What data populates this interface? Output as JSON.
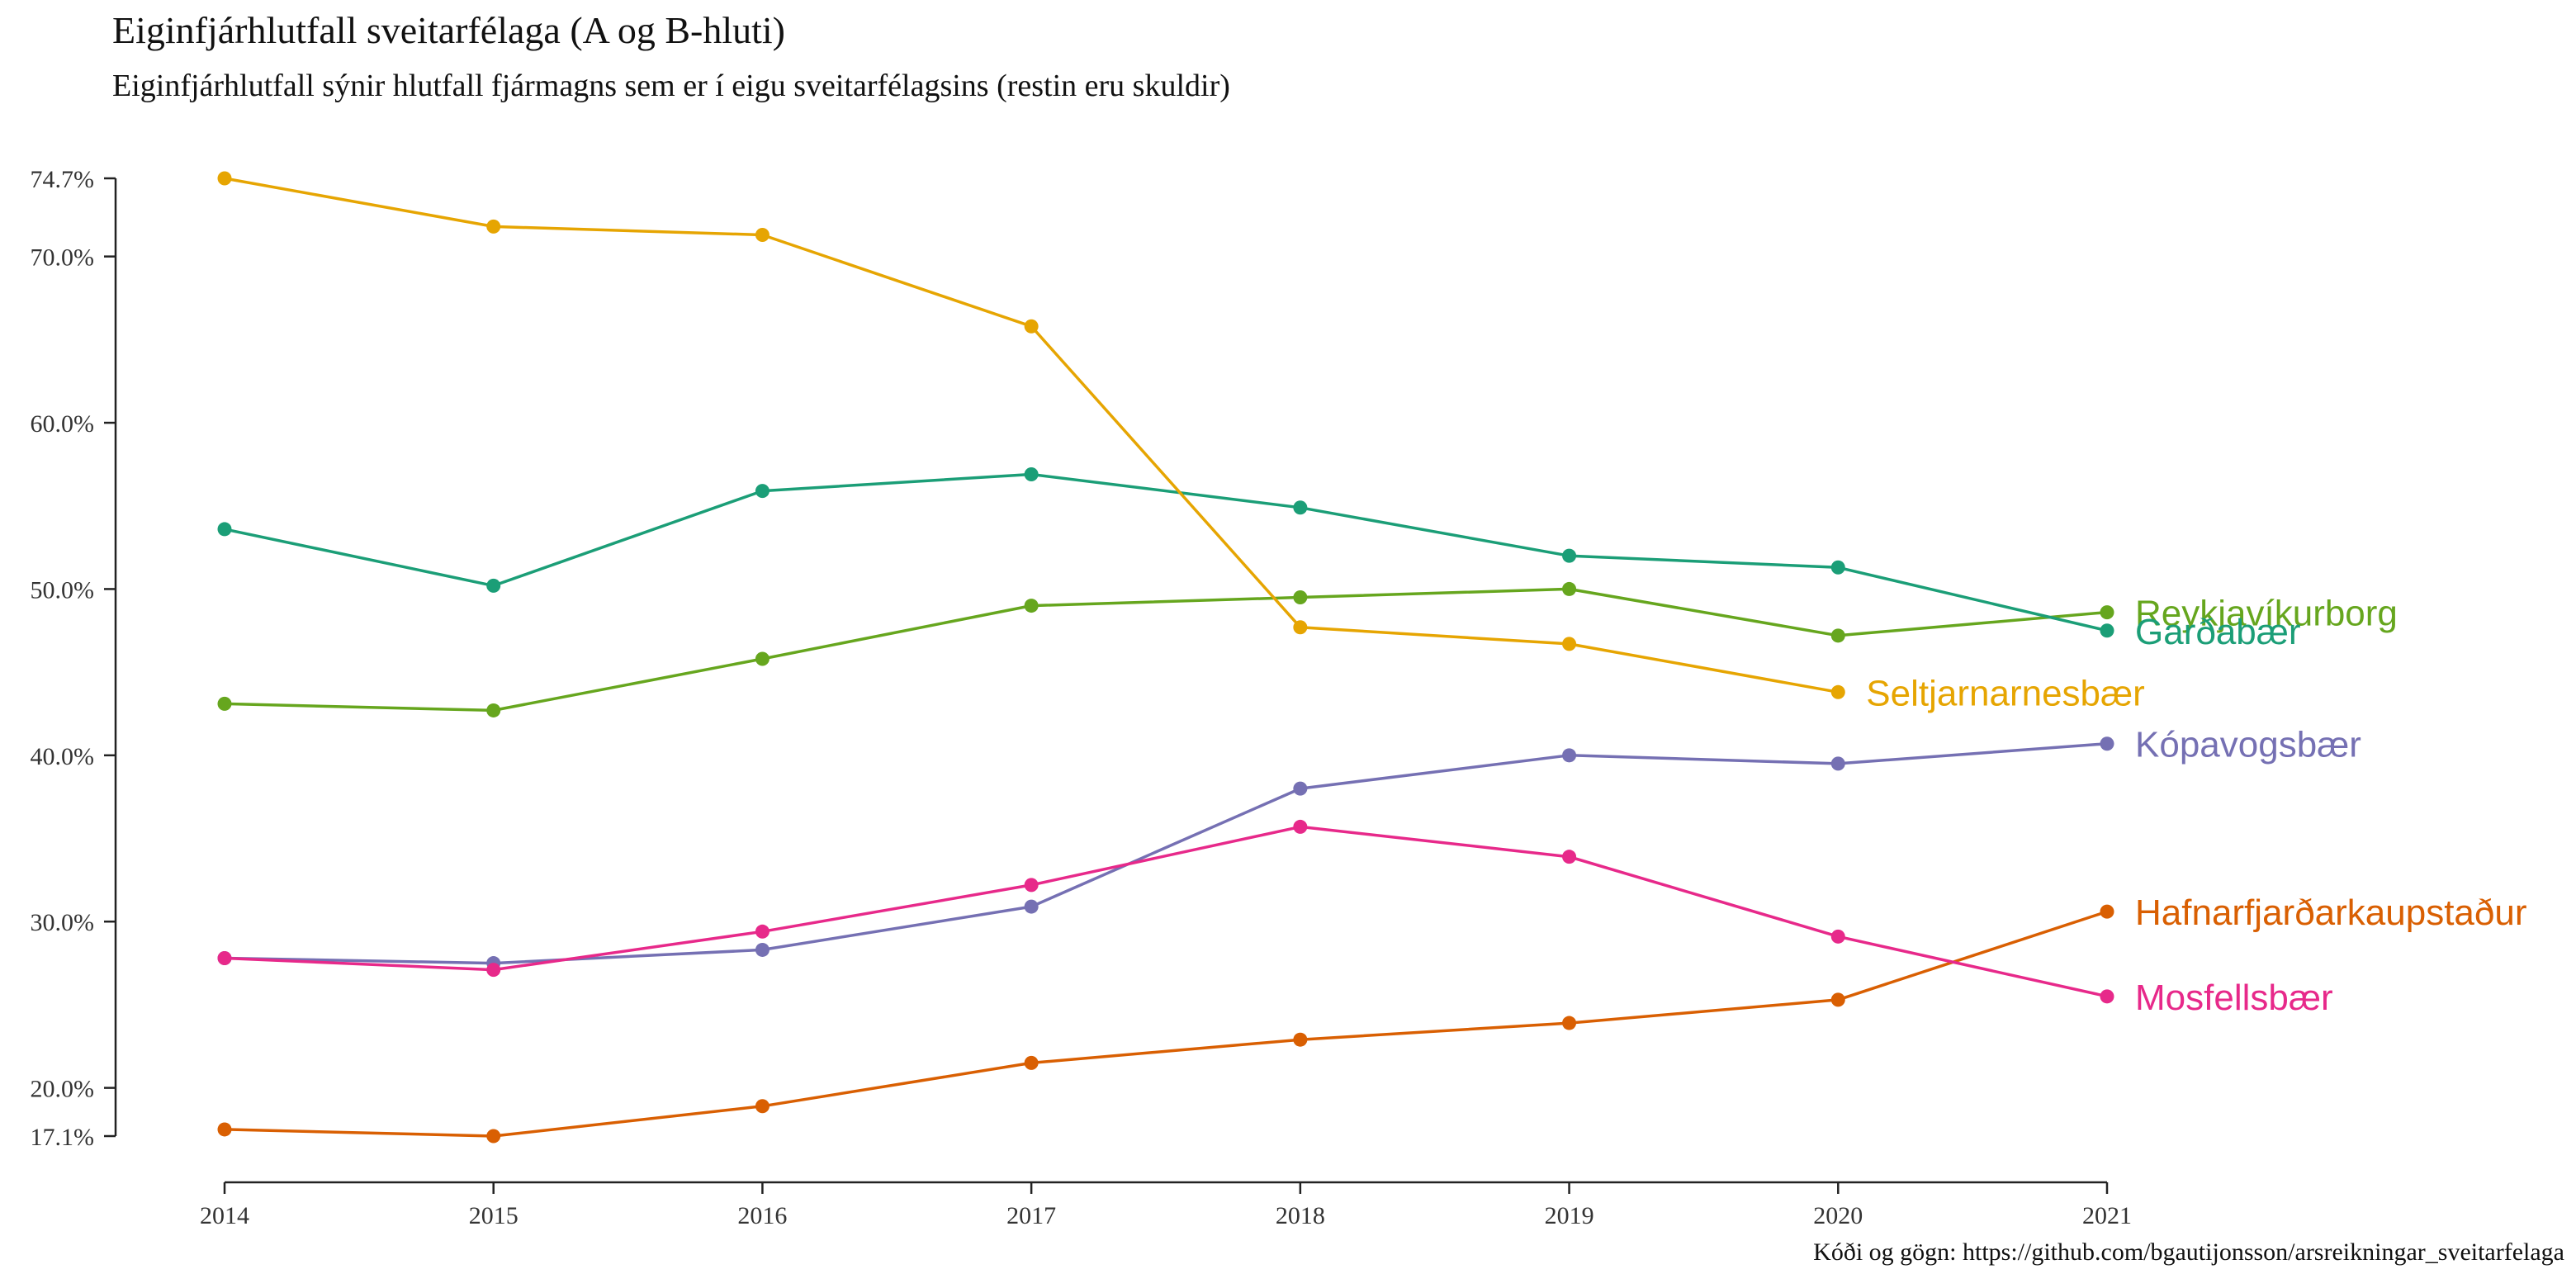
{
  "title": "Eiginfjárhlutfall sveitarfélaga (A og B-hluti)",
  "subtitle": "Eiginfjárhlutfall sýnir hlutfall fjármagns sem er í eigu sveitarfélagsins (restin eru skuldir)",
  "caption": "Kóði og gögn: https://github.com/bgautijonsson/arsreikningar_sveitarfelaga",
  "chart_data": {
    "type": "line",
    "title": "Eiginfjárhlutfall sveitarfélaga (A og B-hluti)",
    "subtitle": "Eiginfjárhlutfall sýnir hlutfall fjármagns sem er í eigu sveitarfélagsins (restin eru skuldir)",
    "xlabel": "",
    "ylabel": "",
    "x": [
      2014,
      2015,
      2016,
      2017,
      2018,
      2019,
      2020,
      2021
    ],
    "xlim": [
      2014,
      2021
    ],
    "ylim": [
      17.1,
      74.7
    ],
    "y_unit": "%",
    "y_ticks": [
      "17.1%",
      "20.0%",
      "30.0%",
      "40.0%",
      "50.0%",
      "60.0%",
      "70.0%",
      "74.7%"
    ],
    "y_tick_values": [
      17.1,
      20,
      30,
      40,
      50,
      60,
      70,
      74.7
    ],
    "x_ticks": [
      "2014",
      "2015",
      "2016",
      "2017",
      "2018",
      "2019",
      "2020",
      "2021"
    ],
    "grid": false,
    "legend": "direct labels at line ends",
    "series": [
      {
        "name": "Reykjavíkurborg",
        "color": "#66a61e",
        "values": [
          43.1,
          42.7,
          45.8,
          49.0,
          49.5,
          50.0,
          47.2,
          48.6
        ]
      },
      {
        "name": "Garðabær",
        "color": "#1b9e77",
        "values": [
          53.6,
          50.2,
          55.9,
          56.9,
          54.9,
          52.0,
          51.3,
          47.5
        ]
      },
      {
        "name": "Seltjarnarnesbær",
        "color": "#e6a502",
        "values": [
          74.7,
          71.8,
          71.3,
          65.8,
          47.7,
          46.7,
          43.8,
          null
        ]
      },
      {
        "name": "Kópavogsbær",
        "color": "#7570b3",
        "values": [
          27.8,
          27.5,
          28.3,
          30.9,
          38.0,
          40.0,
          39.5,
          40.7
        ]
      },
      {
        "name": "Hafnarfjarðarkaupstaður",
        "color": "#d95f02",
        "values": [
          17.5,
          17.1,
          18.9,
          21.5,
          22.9,
          23.9,
          25.3,
          30.6
        ]
      },
      {
        "name": "Mosfellsbær",
        "color": "#e7298a",
        "values": [
          27.8,
          27.1,
          29.4,
          32.2,
          35.7,
          33.9,
          29.1,
          25.5
        ]
      }
    ]
  }
}
